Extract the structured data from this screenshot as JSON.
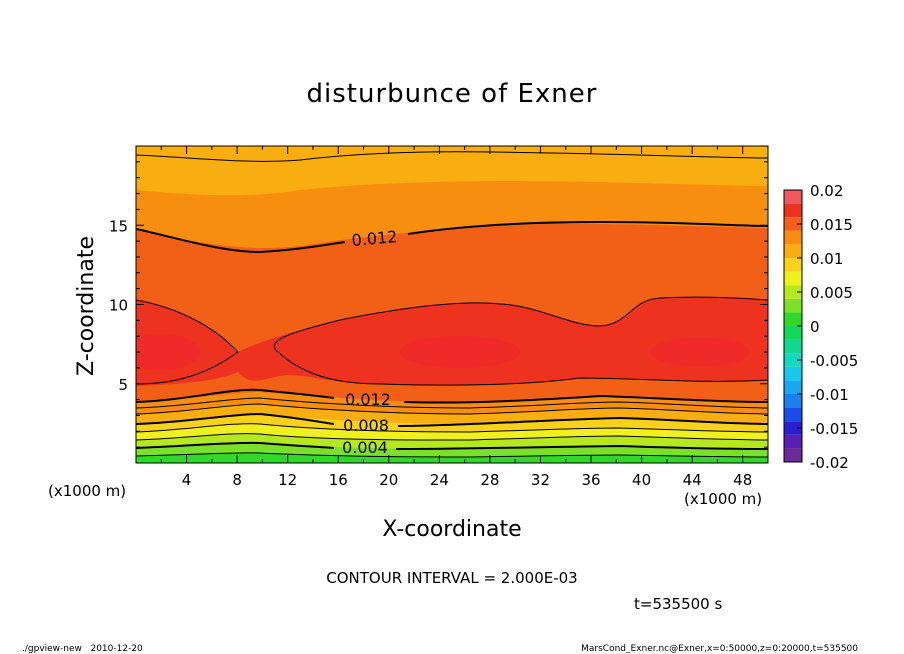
{
  "chart_data": {
    "type": "contour",
    "title": "disturbunce of Exner",
    "xlabel": "X-coordinate",
    "ylabel": "Z-coordinate",
    "x_units": "(×1000 m)",
    "y_units": "(×1000 m)",
    "x_unit_label_bottom_left": "(x1000 m)",
    "x_unit_label_bottom_right": "(x1000 m)",
    "xlim": [
      0,
      50
    ],
    "ylim": [
      0,
      20
    ],
    "x_ticks": [
      "4",
      "8",
      "12",
      "16",
      "20",
      "24",
      "28",
      "32",
      "36",
      "40",
      "44",
      "48"
    ],
    "y_ticks": [
      "5",
      "10",
      "15"
    ],
    "colorbar": {
      "ticks": [
        "0.02",
        "0.015",
        "0.01",
        "0.005",
        "0",
        "-0.005",
        "-0.01",
        "-0.015",
        "-0.02"
      ],
      "range": [
        -0.02,
        0.02
      ],
      "levels": [
        {
          "value": -0.02,
          "color": "#6a2a9a"
        },
        {
          "value": -0.018,
          "color": "#5a1fb0"
        },
        {
          "value": -0.016,
          "color": "#2a1fd0"
        },
        {
          "value": -0.014,
          "color": "#1a4ce8"
        },
        {
          "value": -0.012,
          "color": "#1a80f0"
        },
        {
          "value": -0.01,
          "color": "#19a8f0"
        },
        {
          "value": -0.008,
          "color": "#18c8e8"
        },
        {
          "value": -0.006,
          "color": "#14d8c0"
        },
        {
          "value": -0.004,
          "color": "#10d890"
        },
        {
          "value": -0.002,
          "color": "#12d85a"
        },
        {
          "value": 0.0,
          "color": "#30d82a"
        },
        {
          "value": 0.002,
          "color": "#7ae02a"
        },
        {
          "value": 0.004,
          "color": "#b6e820"
        },
        {
          "value": 0.006,
          "color": "#f0f020"
        },
        {
          "value": 0.008,
          "color": "#f8d21a"
        },
        {
          "value": 0.01,
          "color": "#f8ae10"
        },
        {
          "value": 0.012,
          "color": "#f88e10"
        },
        {
          "value": 0.014,
          "color": "#f26018"
        },
        {
          "value": 0.016,
          "color": "#ee3220"
        },
        {
          "value": 0.018,
          "color": "#f05860"
        },
        {
          "value": 0.02,
          "color": "#f8a0a0"
        }
      ]
    },
    "contour_interval_text": "CONTOUR INTERVAL = 2.000E-03",
    "contour_labels": [
      "0.012",
      "0.012",
      "0.008",
      "0.004"
    ],
    "time_text": "t=535500 s",
    "footer_left": "./gpview-new   2010-12-20",
    "footer_right": "MarsCond_Exner.nc@Exner,x=0:50000,z=0:20000,t=535500"
  }
}
